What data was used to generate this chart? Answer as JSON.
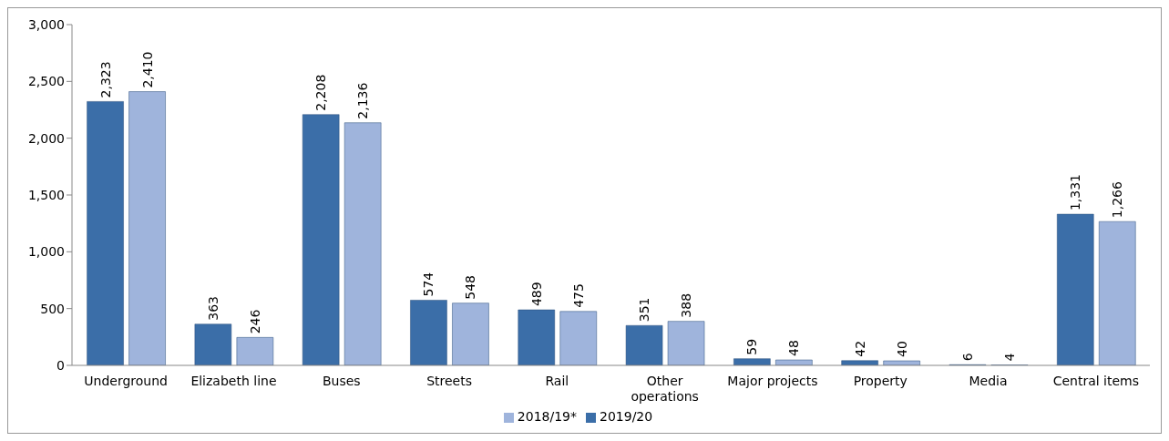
{
  "chart_data": {
    "type": "bar",
    "categories": [
      "Underground",
      "Elizabeth line",
      "Buses",
      "Streets",
      "Rail",
      "Other operations",
      "Major projects",
      "Property",
      "Media",
      "Central items"
    ],
    "series": [
      {
        "name": "2019/20",
        "color": "#3b6ea8",
        "values": [
          2323,
          363,
          2208,
          574,
          489,
          351,
          59,
          42,
          6,
          1331
        ],
        "value_labels": [
          "2,323",
          "363",
          "2,208",
          "574",
          "489",
          "351",
          "59",
          "42",
          "6",
          "1,331"
        ]
      },
      {
        "name": "2018/19*",
        "color": "#9fb4dc",
        "values": [
          2410,
          246,
          2136,
          548,
          475,
          388,
          48,
          40,
          4,
          1266
        ],
        "value_labels": [
          "2,410",
          "246",
          "2,136",
          "548",
          "475",
          "388",
          "48",
          "40",
          "4",
          "1,266"
        ]
      }
    ],
    "ylim": [
      0,
      3000
    ],
    "yticks": [
      0,
      500,
      {
        "value": 1000,
        "label": "1,000"
      },
      {
        "value": 1500,
        "label": "1,500"
      },
      {
        "value": 2000,
        "label": "2,000"
      },
      {
        "value": 2500,
        "label": "2,500"
      },
      {
        "value": 3000,
        "label": "3,000"
      }
    ],
    "grid": false,
    "legend": "bottom"
  }
}
